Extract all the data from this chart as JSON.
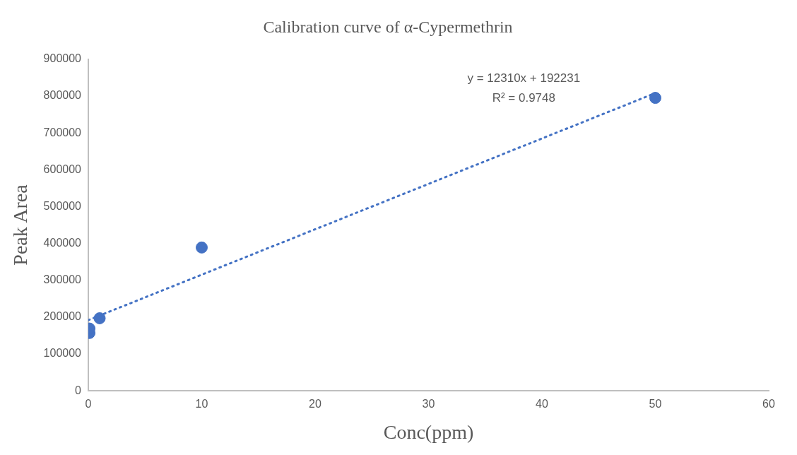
{
  "chart_data": {
    "type": "scatter",
    "title": "Calibration curve of α-Cypermethrin",
    "xlabel": "Conc(ppm)",
    "ylabel": "Peak Area",
    "series": [
      {
        "type": "scatter",
        "color": "#4472c4",
        "x": [
          0.1,
          0.1,
          1,
          10,
          50
        ],
        "values": [
          157000,
          169000,
          197000,
          389000,
          795000
        ],
        "marker": "circle"
      },
      {
        "type": "line",
        "color": "#4472c4",
        "x": [
          0,
          50
        ],
        "values": [
          192000,
          808000
        ],
        "line_style": "dotted",
        "marker": "none"
      }
    ],
    "xlim": [
      0,
      60
    ],
    "xticks": [
      0,
      10,
      20,
      30,
      40,
      50,
      60
    ],
    "ylim": [
      0,
      900000
    ],
    "yticks": [
      0,
      100000,
      200000,
      300000,
      400000,
      500000,
      600000,
      700000,
      800000,
      900000
    ],
    "grid": false,
    "legend": false,
    "annotations": [
      "y = 12310x + 192231",
      "R² = 0.9748"
    ]
  }
}
